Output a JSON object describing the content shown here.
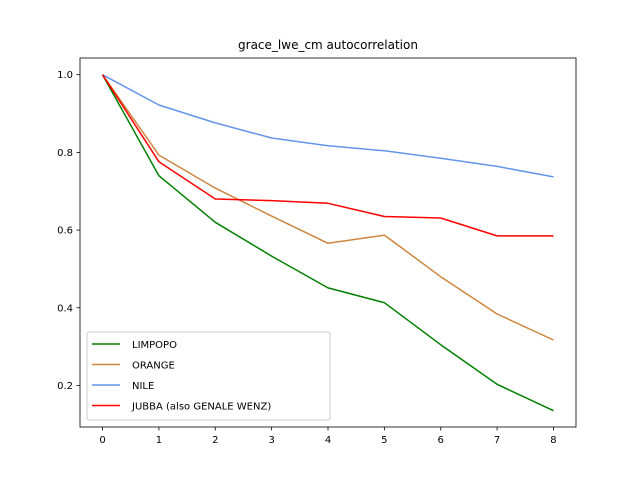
{
  "chart_data": {
    "type": "line",
    "title": "grace_lwe_cm autocorrelation",
    "xlabel": "",
    "ylabel": "",
    "x": [
      0,
      1,
      2,
      3,
      4,
      5,
      6,
      7,
      8
    ],
    "xlim": [
      -0.4,
      8.4
    ],
    "ylim": [
      0.093,
      1.043
    ],
    "xticks": [
      0,
      1,
      2,
      3,
      4,
      5,
      6,
      7,
      8
    ],
    "yticks": [
      0.2,
      0.4,
      0.6,
      0.8,
      1.0
    ],
    "ytick_labels": [
      "0.2",
      "0.4",
      "0.6",
      "0.8",
      "1.0"
    ],
    "grid": false,
    "legend_position": "lower-left",
    "series": [
      {
        "name": "LIMPOPO",
        "color": "#008000",
        "values": [
          1.0,
          0.74,
          0.62,
          0.533,
          0.451,
          0.413,
          0.305,
          0.203,
          0.135
        ]
      },
      {
        "name": "ORANGE",
        "color": "#cd853f",
        "values": [
          1.0,
          0.793,
          0.708,
          0.636,
          0.566,
          0.587,
          0.48,
          0.384,
          0.317
        ]
      },
      {
        "name": "NILE",
        "color": "#6495ed",
        "values": [
          1.0,
          0.922,
          0.876,
          0.837,
          0.817,
          0.804,
          0.785,
          0.764,
          0.737
        ]
      },
      {
        "name": "JUBBA (also GENALE WENZ)",
        "color": "#ff0000",
        "values": [
          1.0,
          0.776,
          0.68,
          0.676,
          0.669,
          0.635,
          0.631,
          0.585,
          0.585
        ]
      }
    ]
  }
}
